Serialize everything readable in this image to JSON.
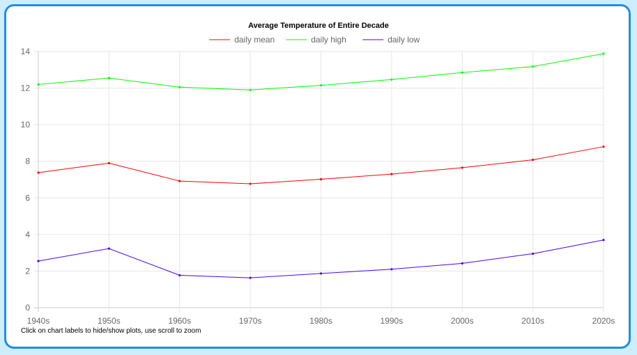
{
  "footnote": "Click on chart labels to hide/show plots, use scroll to zoom",
  "chart_data": {
    "type": "line",
    "title": "Average Temperature of Entire Decade",
    "xlabel": "",
    "ylabel": "",
    "categories": [
      "1940s",
      "1950s",
      "1960s",
      "1970s",
      "1980s",
      "1990s",
      "2000s",
      "2010s",
      "2020s"
    ],
    "ylim": [
      0,
      14
    ],
    "yticks": [
      0,
      2,
      4,
      6,
      8,
      10,
      12,
      14
    ],
    "grid": true,
    "legend_position": "top",
    "series": [
      {
        "name": "daily mean",
        "color": "#ff0000",
        "values": [
          7.38,
          7.9,
          6.92,
          6.77,
          7.02,
          7.3,
          7.65,
          8.08,
          8.8
        ]
      },
      {
        "name": "daily high",
        "color": "#00ff00",
        "values": [
          12.2,
          12.55,
          12.05,
          11.9,
          12.15,
          12.47,
          12.85,
          13.18,
          13.88
        ]
      },
      {
        "name": "daily low",
        "color": "#4a00ff",
        "values": [
          2.55,
          3.23,
          1.77,
          1.63,
          1.87,
          2.1,
          2.42,
          2.95,
          3.7
        ]
      }
    ]
  }
}
